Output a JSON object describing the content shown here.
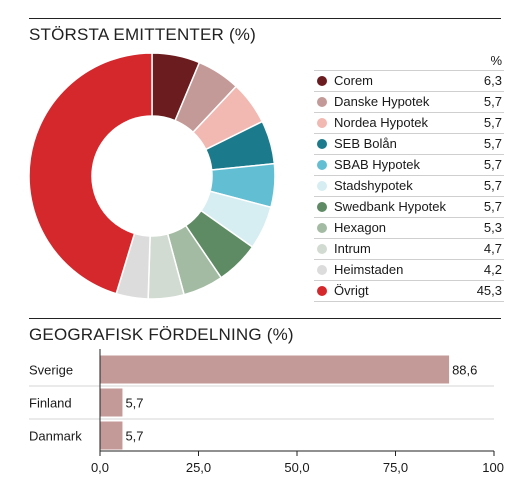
{
  "emitters_section": {
    "title": "STÖRSTA EMITTENTER (%)",
    "unit": "%"
  },
  "geo_section": {
    "title": "GEOGRAFISK FÖRDELNING (%)"
  },
  "chart_data": [
    {
      "type": "pie",
      "donut": true,
      "title": "STÖRSTA EMITTENTER (%)",
      "unit": "%",
      "slices": [
        {
          "label": "Corem",
          "value": 6.3,
          "display": "6,3",
          "color": "#6b1c1f"
        },
        {
          "label": "Danske Hypotek",
          "value": 5.7,
          "display": "5,7",
          "color": "#c39a97"
        },
        {
          "label": "Nordea Hypotek",
          "value": 5.7,
          "display": "5,7",
          "color": "#f2b8b2"
        },
        {
          "label": "SEB Bolån",
          "value": 5.7,
          "display": "5,7",
          "color": "#1b7a8b"
        },
        {
          "label": "SBAB Hypotek",
          "value": 5.7,
          "display": "5,7",
          "color": "#62bfd3"
        },
        {
          "label": "Stadshypotek",
          "value": 5.7,
          "display": "5,7",
          "color": "#d6edf2"
        },
        {
          "label": "Swedbank Hypotek",
          "value": 5.7,
          "display": "5,7",
          "color": "#5e8a64"
        },
        {
          "label": "Hexagon",
          "value": 5.3,
          "display": "5,3",
          "color": "#a3bba3"
        },
        {
          "label": "Intrum",
          "value": 4.7,
          "display": "4,7",
          "color": "#d1dbd1"
        },
        {
          "label": "Heimstaden",
          "value": 4.2,
          "display": "4,2",
          "color": "#dcdcdc"
        },
        {
          "label": "Övrigt",
          "value": 45.3,
          "display": "45,3",
          "color": "#d4282c"
        }
      ]
    },
    {
      "type": "bar",
      "orientation": "horizontal",
      "title": "GEOGRAFISK FÖRDELNING (%)",
      "categories": [
        "Sverige",
        "Finland",
        "Danmark"
      ],
      "values": [
        88.6,
        5.7,
        5.7
      ],
      "value_labels": [
        "88,6",
        "5,7",
        "5,7"
      ],
      "xlim": [
        0,
        100
      ],
      "xticks": [
        0,
        25,
        50,
        75,
        100
      ],
      "xtick_labels": [
        "0,0",
        "25,0",
        "50,0",
        "75,0",
        "100"
      ],
      "bar_color": "#c39a97"
    }
  ]
}
